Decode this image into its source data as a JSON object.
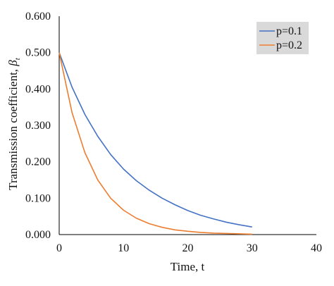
{
  "chart_data": {
    "type": "line",
    "xlabel": "Time, t",
    "ylabel": "Transmission coefficient, ",
    "ylabel_symbol": "β",
    "ylabel_subscript": "t",
    "xlim": [
      0,
      40
    ],
    "ylim": [
      0,
      0.6
    ],
    "x_ticks": [
      "0",
      "10",
      "20",
      "30",
      "40"
    ],
    "y_ticks": [
      "0.000",
      "0.100",
      "0.200",
      "0.300",
      "0.400",
      "0.500",
      "0.600"
    ],
    "grid": false,
    "legend_position": "top-right",
    "series": [
      {
        "name": "p=0.1",
        "color": "#4472C4",
        "x": [
          0,
          2,
          4,
          6,
          8,
          10,
          12,
          14,
          16,
          18,
          20,
          22,
          24,
          26,
          28,
          30
        ],
        "y": [
          0.5,
          0.405,
          0.33,
          0.27,
          0.22,
          0.18,
          0.148,
          0.122,
          0.1,
          0.082,
          0.066,
          0.053,
          0.043,
          0.034,
          0.027,
          0.021
        ]
      },
      {
        "name": "p=0.2",
        "color": "#ED7D31",
        "x": [
          0,
          2,
          4,
          6,
          8,
          10,
          12,
          14,
          16,
          18,
          20,
          22,
          24,
          26,
          28,
          30
        ],
        "y": [
          0.5,
          0.335,
          0.225,
          0.15,
          0.1,
          0.067,
          0.045,
          0.03,
          0.02,
          0.013,
          0.009,
          0.006,
          0.004,
          0.003,
          0.002,
          0.001
        ]
      }
    ]
  }
}
